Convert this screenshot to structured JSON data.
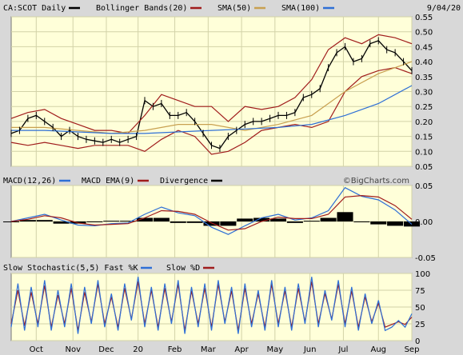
{
  "header": {
    "symbol": "CA:SCOT Daily",
    "date": "9/04/20",
    "watermark": "©BigCharts.com"
  },
  "colors": {
    "background": "#d8d8d8",
    "panel": "#ffffd9",
    "grid": "#d2d2a8",
    "price": "#000000",
    "bollinger": "#a01c1c",
    "sma50": "#c8a050",
    "sma100": "#2e6fd6",
    "macd": "#2e6fd6",
    "macd_ema": "#a01c1c",
    "divergence": "#000000",
    "fast_k": "#2e6fd6",
    "slow_d": "#a01c1c"
  },
  "legends": {
    "price": [
      {
        "label": "CA:SCOT Daily",
        "color": "#000000"
      },
      {
        "label": "Bollinger Bands(20)",
        "color": "#a01c1c"
      },
      {
        "label": "SMA(50)",
        "color": "#c8a050"
      },
      {
        "label": "SMA(100)",
        "color": "#2e6fd6"
      }
    ],
    "macd": [
      {
        "label": "MACD(12,26)",
        "color": "#2e6fd6"
      },
      {
        "label": "MACD EMA(9)",
        "color": "#a01c1c"
      },
      {
        "label": "Divergence",
        "color": "#000000"
      }
    ],
    "stoch": [
      {
        "label": "Slow Stochastic(5,5) Fast %K",
        "color": "#2e6fd6"
      },
      {
        "label": "Slow %D",
        "color": "#a01c1c"
      }
    ]
  },
  "chart_data": [
    {
      "type": "line",
      "panel": "price",
      "yticks": [
        "0.05",
        "0.10",
        "0.15",
        "0.20",
        "0.25",
        "0.30",
        "0.35",
        "0.40",
        "0.45",
        "0.50",
        "0.55"
      ],
      "ylim": [
        0.05,
        0.55
      ],
      "xlim": [
        0,
        240
      ],
      "series": [
        {
          "name": "CA:SCOT Daily",
          "x": [
            0,
            5,
            10,
            15,
            20,
            25,
            30,
            35,
            40,
            45,
            50,
            55,
            60,
            65,
            70,
            75,
            80,
            85,
            90,
            95,
            100,
            105,
            110,
            115,
            120,
            125,
            130,
            135,
            140,
            145,
            150,
            155,
            160,
            165,
            170,
            175,
            180,
            185,
            190,
            195,
            200,
            205,
            210,
            215,
            220,
            225,
            230,
            235,
            240
          ],
          "values": [
            0.16,
            0.17,
            0.21,
            0.22,
            0.2,
            0.18,
            0.15,
            0.17,
            0.15,
            0.14,
            0.135,
            0.13,
            0.14,
            0.13,
            0.14,
            0.15,
            0.27,
            0.25,
            0.26,
            0.22,
            0.22,
            0.23,
            0.2,
            0.16,
            0.12,
            0.11,
            0.15,
            0.17,
            0.19,
            0.2,
            0.2,
            0.21,
            0.22,
            0.22,
            0.23,
            0.28,
            0.29,
            0.31,
            0.38,
            0.43,
            0.45,
            0.4,
            0.41,
            0.46,
            0.47,
            0.44,
            0.43,
            0.4,
            0.37
          ]
        },
        {
          "name": "Bollinger Bands(20) Upper",
          "x": [
            0,
            10,
            20,
            30,
            40,
            50,
            60,
            70,
            80,
            90,
            100,
            110,
            120,
            130,
            140,
            150,
            160,
            170,
            180,
            190,
            200,
            210,
            220,
            230,
            240
          ],
          "values": [
            0.21,
            0.23,
            0.24,
            0.21,
            0.19,
            0.17,
            0.17,
            0.16,
            0.22,
            0.29,
            0.27,
            0.25,
            0.25,
            0.2,
            0.25,
            0.24,
            0.25,
            0.28,
            0.34,
            0.44,
            0.48,
            0.46,
            0.49,
            0.48,
            0.46
          ]
        },
        {
          "name": "Bollinger Bands(20) Lower",
          "x": [
            0,
            10,
            20,
            30,
            40,
            50,
            60,
            70,
            80,
            90,
            100,
            110,
            120,
            130,
            140,
            150,
            160,
            170,
            180,
            190,
            200,
            210,
            220,
            230,
            240
          ],
          "values": [
            0.13,
            0.12,
            0.13,
            0.12,
            0.11,
            0.12,
            0.12,
            0.12,
            0.1,
            0.14,
            0.17,
            0.15,
            0.09,
            0.1,
            0.13,
            0.17,
            0.18,
            0.19,
            0.18,
            0.2,
            0.3,
            0.35,
            0.37,
            0.38,
            0.36
          ]
        },
        {
          "name": "SMA(50)",
          "x": [
            0,
            20,
            40,
            60,
            80,
            100,
            120,
            140,
            160,
            180,
            200,
            220,
            240
          ],
          "values": [
            0.18,
            0.18,
            0.17,
            0.16,
            0.17,
            0.19,
            0.19,
            0.17,
            0.19,
            0.22,
            0.3,
            0.36,
            0.4
          ]
        },
        {
          "name": "SMA(100)",
          "x": [
            0,
            20,
            40,
            60,
            80,
            100,
            120,
            140,
            160,
            180,
            200,
            220,
            240
          ],
          "values": [
            0.17,
            0.17,
            0.165,
            0.16,
            0.16,
            0.165,
            0.17,
            0.175,
            0.18,
            0.19,
            0.22,
            0.26,
            0.32
          ]
        }
      ]
    },
    {
      "type": "line",
      "panel": "macd",
      "yticks": [
        "0.05",
        "0.00",
        "-0.05"
      ],
      "ylim": [
        -0.05,
        0.05
      ],
      "xlim": [
        0,
        240
      ],
      "series": [
        {
          "name": "MACD(12,26)",
          "x": [
            0,
            10,
            20,
            30,
            40,
            50,
            60,
            70,
            80,
            90,
            100,
            110,
            120,
            130,
            140,
            150,
            160,
            170,
            180,
            190,
            200,
            210,
            220,
            230,
            240
          ],
          "values": [
            0.0,
            0.005,
            0.01,
            0.002,
            -0.005,
            -0.006,
            -0.003,
            -0.002,
            0.01,
            0.02,
            0.012,
            0.008,
            -0.008,
            -0.018,
            -0.006,
            0.005,
            0.01,
            0.002,
            0.005,
            0.015,
            0.047,
            0.035,
            0.03,
            0.016,
            -0.004
          ]
        },
        {
          "name": "MACD EMA(9)",
          "x": [
            0,
            10,
            20,
            30,
            40,
            50,
            60,
            70,
            80,
            90,
            100,
            110,
            120,
            130,
            140,
            150,
            160,
            170,
            180,
            190,
            200,
            210,
            220,
            230,
            240
          ],
          "values": [
            0.0,
            0.003,
            0.008,
            0.005,
            -0.002,
            -0.005,
            -0.004,
            -0.003,
            0.005,
            0.015,
            0.014,
            0.01,
            -0.002,
            -0.012,
            -0.01,
            0.0,
            0.006,
            0.004,
            0.004,
            0.01,
            0.034,
            0.036,
            0.034,
            0.022,
            0.003
          ]
        },
        {
          "name": "Divergence",
          "x": [
            0,
            10,
            20,
            30,
            40,
            50,
            60,
            70,
            80,
            90,
            100,
            110,
            120,
            130,
            140,
            150,
            160,
            170,
            180,
            190,
            200,
            210,
            220,
            230,
            240
          ],
          "values": [
            0.0,
            0.002,
            0.002,
            -0.003,
            -0.003,
            -0.001,
            0.001,
            0.001,
            0.005,
            0.005,
            -0.002,
            -0.002,
            -0.006,
            -0.006,
            0.004,
            0.005,
            0.004,
            -0.002,
            0.001,
            0.005,
            0.013,
            -0.001,
            -0.004,
            -0.006,
            -0.007
          ]
        }
      ]
    },
    {
      "type": "line",
      "panel": "stoch",
      "yticks": [
        "100",
        "75",
        "50",
        "25",
        "0"
      ],
      "ylim": [
        0,
        100
      ],
      "xlim": [
        0,
        240
      ],
      "xticks": [
        {
          "label": "Oct",
          "x": 15
        },
        {
          "label": "Nov",
          "x": 37
        },
        {
          "label": "Dec",
          "x": 57
        },
        {
          "label": "20",
          "x": 76
        },
        {
          "label": "Feb",
          "x": 98
        },
        {
          "label": "Mar",
          "x": 118
        },
        {
          "label": "Apr",
          "x": 138
        },
        {
          "label": "May",
          "x": 158
        },
        {
          "label": "Jun",
          "x": 179
        },
        {
          "label": "Jul",
          "x": 199
        },
        {
          "label": "Aug",
          "x": 220
        },
        {
          "label": "Sep",
          "x": 240
        }
      ],
      "series": [
        {
          "name": "Fast %K",
          "x": [
            0,
            4,
            8,
            12,
            16,
            20,
            24,
            28,
            32,
            36,
            40,
            44,
            48,
            52,
            56,
            60,
            64,
            68,
            72,
            76,
            80,
            84,
            88,
            92,
            96,
            100,
            104,
            108,
            112,
            116,
            120,
            124,
            128,
            132,
            136,
            140,
            144,
            148,
            152,
            156,
            160,
            164,
            168,
            172,
            176,
            180,
            184,
            188,
            192,
            196,
            200,
            204,
            208,
            212,
            216,
            220,
            224,
            228,
            232,
            236,
            240
          ],
          "values": [
            20,
            85,
            15,
            80,
            20,
            90,
            15,
            75,
            20,
            85,
            10,
            80,
            25,
            90,
            20,
            70,
            15,
            85,
            30,
            95,
            20,
            80,
            15,
            85,
            25,
            90,
            10,
            80,
            20,
            85,
            15,
            90,
            25,
            80,
            10,
            85,
            20,
            75,
            15,
            90,
            20,
            80,
            15,
            85,
            25,
            95,
            20,
            75,
            30,
            90,
            20,
            80,
            15,
            70,
            25,
            60,
            15,
            20,
            30,
            20,
            40
          ]
        },
        {
          "name": "Slow %D",
          "x": [
            0,
            4,
            8,
            12,
            16,
            20,
            24,
            28,
            32,
            36,
            40,
            44,
            48,
            52,
            56,
            60,
            64,
            68,
            72,
            76,
            80,
            84,
            88,
            92,
            96,
            100,
            104,
            108,
            112,
            116,
            120,
            124,
            128,
            132,
            136,
            140,
            144,
            148,
            152,
            156,
            160,
            164,
            168,
            172,
            176,
            180,
            184,
            188,
            192,
            196,
            200,
            204,
            208,
            212,
            216,
            220,
            224,
            228,
            232,
            236,
            240
          ],
          "values": [
            25,
            75,
            22,
            72,
            25,
            82,
            20,
            68,
            25,
            78,
            15,
            72,
            28,
            84,
            25,
            65,
            20,
            78,
            32,
            88,
            25,
            75,
            20,
            78,
            28,
            84,
            15,
            74,
            25,
            78,
            20,
            84,
            28,
            74,
            15,
            78,
            25,
            70,
            20,
            84,
            25,
            74,
            20,
            78,
            28,
            88,
            25,
            70,
            32,
            84,
            25,
            74,
            20,
            65,
            28,
            56,
            20,
            24,
            28,
            24,
            35
          ]
        }
      ]
    }
  ]
}
